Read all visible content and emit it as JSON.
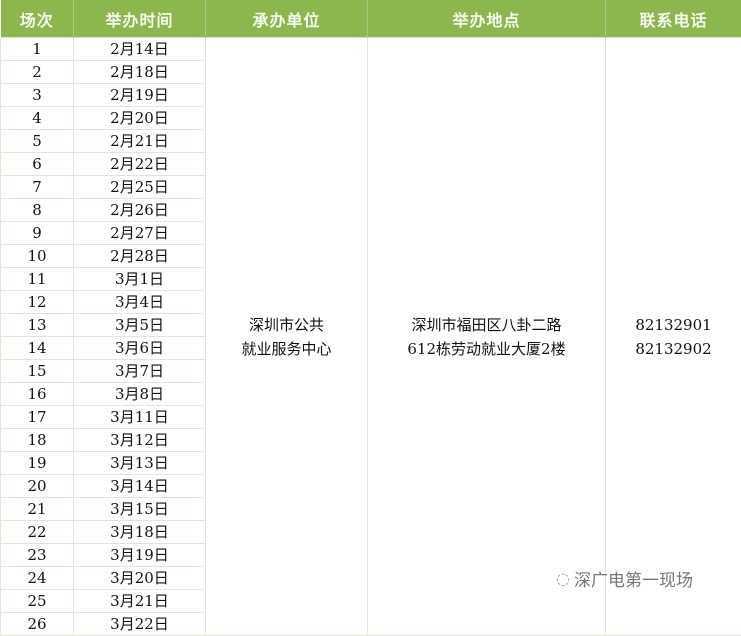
{
  "headers": [
    "场次",
    "举办时间",
    "承办单位",
    "举办地点",
    "联系电话"
  ],
  "rows": [
    [
      "1",
      "2月14日"
    ],
    [
      "2",
      "2月18日"
    ],
    [
      "3",
      "2月19日"
    ],
    [
      "4",
      "2月20日"
    ],
    [
      "5",
      "2月21日"
    ],
    [
      "6",
      "2月22日"
    ],
    [
      "7",
      "2月25日"
    ],
    [
      "8",
      "2月26日"
    ],
    [
      "9",
      "2月27日"
    ],
    [
      "10",
      "2月28日"
    ],
    [
      "11",
      "3月1日"
    ],
    [
      "12",
      "3月4日"
    ],
    [
      "13",
      "3月5日"
    ],
    [
      "14",
      "3月6日"
    ],
    [
      "15",
      "3月7日"
    ],
    [
      "16",
      "3月8日"
    ],
    [
      "17",
      "3月11日"
    ],
    [
      "18",
      "3月12日"
    ],
    [
      "19",
      "3月13日"
    ],
    [
      "20",
      "3月14日"
    ],
    [
      "21",
      "3月15日"
    ],
    [
      "22",
      "3月18日"
    ],
    [
      "23",
      "3月19日"
    ],
    [
      "24",
      "3月20日"
    ],
    [
      "25",
      "3月21日"
    ],
    [
      "26",
      "3月22日"
    ]
  ],
  "organizer": [
    "深圳市公共",
    "就业服务中心"
  ],
  "location": [
    "深圳市福田区八卦二路",
    "612栋劳动就业大厦2楼"
  ],
  "phones": [
    "82132901",
    "82132902"
  ],
  "watermark": {
    "text": "深广电第一现场",
    "icon": "wechat-icon"
  },
  "colors": {
    "header_bg": "#8db64f",
    "header_text": "#f4f8ee"
  }
}
